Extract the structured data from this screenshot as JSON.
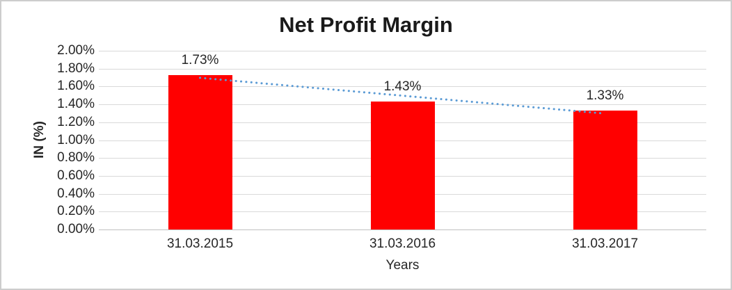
{
  "chart_data": {
    "type": "bar",
    "title": "Net Profit Margin",
    "categories": [
      "31.03.2015",
      "31.03.2016",
      "31.03.2017"
    ],
    "values": [
      1.73,
      1.43,
      1.33
    ],
    "data_labels": [
      "1.73%",
      "1.43%",
      "1.33%"
    ],
    "xlabel": "Years",
    "ylabel": "IN (%)",
    "ylim": [
      0,
      2
    ],
    "ytick_step": 0.2,
    "ytick_labels": [
      "2.00%",
      "1.80%",
      "1.60%",
      "1.40%",
      "1.20%",
      "1.00%",
      "0.80%",
      "0.60%",
      "0.40%",
      "0.20%",
      "0.00%"
    ],
    "grid": true,
    "legend_position": "none",
    "bar_color": "#FF0000",
    "trendline": {
      "type": "linear",
      "style": "dotted",
      "color": "#5B9BD5",
      "start_value": 1.697,
      "end_value": 1.297
    }
  },
  "colors": {
    "bar": "#FF0000",
    "trendline": "#5B9BD5",
    "gridline": "#D9D9D9",
    "axis_line": "#BFBFBF",
    "text": "#262626",
    "title_text": "#1A1A1A",
    "background": "#FFFFFF",
    "frame_border": "#CDCDCD"
  }
}
